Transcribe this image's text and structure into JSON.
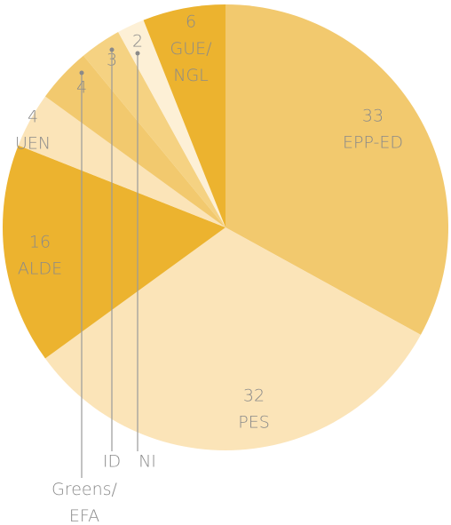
{
  "chart_data": {
    "type": "pie",
    "categories": [
      "EPP-ED",
      "PES",
      "ALDE",
      "UEN",
      "Greens/EFA",
      "ID",
      "NI",
      "GUE/NGL"
    ],
    "values": [
      33,
      32,
      16,
      4,
      4,
      3,
      2,
      6
    ],
    "colors": [
      "#f2c96e",
      "#fbe4b8",
      "#ecb32f",
      "#fbe4b8",
      "#f2c96e",
      "#f5d282",
      "#fdf0d6",
      "#ecb32f"
    ]
  }
}
